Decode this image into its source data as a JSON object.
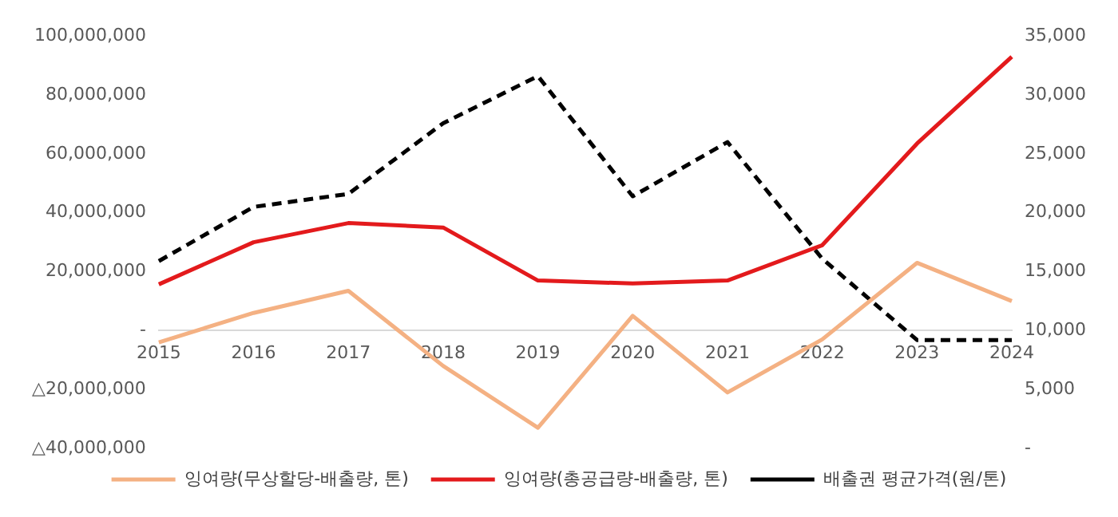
{
  "chart_data": {
    "type": "line",
    "categories": [
      "2015",
      "2016",
      "2017",
      "2018",
      "2019",
      "2020",
      "2021",
      "2022",
      "2023",
      "2024"
    ],
    "series": [
      {
        "name": "잉여량(무상할당-배출량, 톤)",
        "color": "#f4b183",
        "values": [
          -4000000,
          6000000,
          13500000,
          -12000000,
          -33000000,
          5000000,
          -21000000,
          -3000000,
          23000000,
          10000000
        ]
      },
      {
        "name": "잉여량(총공급량-배출량, 톤)",
        "color": "#e31a1c",
        "values": [
          15700000,
          30000000,
          36500000,
          35000000,
          17000000,
          16000000,
          17000000,
          29000000,
          63500000,
          93000000
        ]
      },
      {
        "name": "배출권 평균가격(원/톤)",
        "color": "#000000",
        "axis": "y2",
        "line_style": "dashed",
        "values": [
          15900,
          20500,
          21600,
          27600,
          31600,
          21400,
          26000,
          16100,
          9200,
          9200
        ]
      }
    ],
    "ylim": [
      -40000000,
      100000000
    ],
    "yticks": [
      {
        "value": -40000000,
        "label": "△40,000,000"
      },
      {
        "value": -20000000,
        "label": "△20,000,000"
      },
      {
        "value": 0,
        "label": "-"
      },
      {
        "value": 20000000,
        "label": "20,000,000"
      },
      {
        "value": 40000000,
        "label": "40,000,000"
      },
      {
        "value": 60000000,
        "label": "60,000,000"
      },
      {
        "value": 80000000,
        "label": "80,000,000"
      },
      {
        "value": 100000000,
        "label": "100,000,000"
      }
    ],
    "y2lim": [
      0,
      35000
    ],
    "y2ticks": [
      {
        "value": 0,
        "label": "-"
      },
      {
        "value": 5000,
        "label": "5,000"
      },
      {
        "value": 10000,
        "label": "10,000"
      },
      {
        "value": 15000,
        "label": "15,000"
      },
      {
        "value": 20000,
        "label": "20,000"
      },
      {
        "value": 25000,
        "label": "25,000"
      },
      {
        "value": 30000,
        "label": "30,000"
      },
      {
        "value": 35000,
        "label": "35,000"
      }
    ],
    "grid": false,
    "legend": "bottom",
    "marker": "none"
  }
}
